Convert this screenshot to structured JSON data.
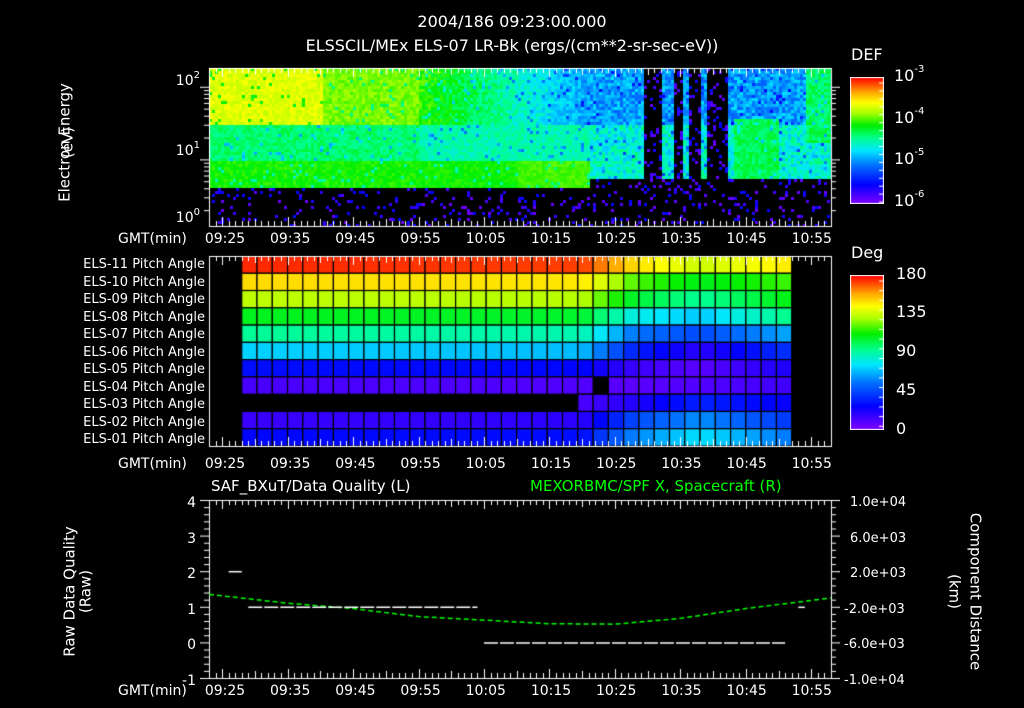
{
  "header": {
    "timestamp": "2004/186 09:23:00.000",
    "subtitle": "ELSSCIL/MEx ELS-07 LR-Bk  (ergs/(cm**2-sr-sec-eV))"
  },
  "x_axis": {
    "label": "GMT(min)",
    "ticks": [
      "09:25",
      "09:35",
      "09:45",
      "09:55",
      "10:05",
      "10:15",
      "10:25",
      "10:35",
      "10:45",
      "10:55"
    ]
  },
  "colors": {
    "background": "#000000",
    "axis": "#ffffff",
    "line_green": "#00ff00",
    "line_white": "#ffffff"
  },
  "chart_data": [
    {
      "type": "heatmap",
      "title": "ELSSCIL/MEx ELS-07 LR-Bk  (ergs/(cm**2-sr-sec-eV))",
      "xlabel": "GMT(min)",
      "ylabel": "Electron Energy (eV)",
      "yscale": "log",
      "ylim": [
        1,
        150
      ],
      "y_ticks": [
        "10^0",
        "10^1",
        "10^2"
      ],
      "x_range": [
        "09:23",
        "10:58"
      ],
      "colorbar": {
        "label": "DEF",
        "scale": "log",
        "range": [
          1e-06,
          0.001
        ],
        "ticks": [
          "10^-6",
          "10^-5",
          "10^-4",
          "10^-3"
        ]
      },
      "features": {
        "low_energy_cutoff_eV_before_1022": 3.5,
        "low_energy_cutoff_eV_after_1022": 4.5,
        "intense_band_eV": "20-150 (09:23-09:40, yellow-green)",
        "dropouts": [
          "10:30-10:32",
          "10:36-10:38",
          "10:39-10:42"
        ]
      }
    },
    {
      "type": "heatmap",
      "title": "Pitch Angle",
      "xlabel": "GMT(min)",
      "ylabel": "",
      "rows": [
        "ELS-11 Pitch Angle",
        "ELS-10 Pitch Angle",
        "ELS-09 Pitch Angle",
        "ELS-08 Pitch Angle",
        "ELS-07 Pitch Angle",
        "ELS-06 Pitch Angle",
        "ELS-05 Pitch Angle",
        "ELS-04 Pitch Angle",
        "ELS-03 Pitch Angle",
        "ELS-02 Pitch Angle",
        "ELS-01 Pitch Angle"
      ],
      "colorbar": {
        "label": "Deg",
        "scale": "linear",
        "range": [
          0,
          180
        ],
        "ticks": [
          "0",
          "45",
          "90",
          "135",
          "180"
        ]
      },
      "data_start": "09:28",
      "data_end": "10:52",
      "time_columns": [
        "09:28",
        "10:20",
        "10:28",
        "10:38",
        "10:52"
      ],
      "values_deg": [
        [
          175,
          172,
          150,
          135,
          148
        ],
        [
          150,
          148,
          120,
          108,
          118
        ],
        [
          133,
          132,
          105,
          92,
          110
        ],
        [
          108,
          106,
          80,
          70,
          95
        ],
        [
          92,
          88,
          55,
          45,
          65
        ],
        [
          72,
          68,
          35,
          18,
          40
        ],
        [
          30,
          28,
          15,
          8,
          22
        ],
        [
          12,
          10,
          8,
          10,
          14
        ],
        [
          null,
          12,
          20,
          35,
          25
        ],
        [
          15,
          18,
          45,
          60,
          40
        ],
        [
          28,
          30,
          58,
          75,
          55
        ]
      ],
      "gaps": [
        {
          "row": "ELS-04 Pitch Angle",
          "time": "10:22"
        },
        {
          "row": "ELS-03 Pitch Angle",
          "start": "09:23",
          "end": "10:20"
        }
      ]
    },
    {
      "type": "line",
      "title_left": "SAF_BXuT/Data Quality (L)",
      "title_right": "MEXORBMC/SPF X, Spacecraft (R)",
      "xlabel": "GMT(min)",
      "ylabel_left": "Raw Data Quality (Raw)",
      "ylabel_right": "Component Distance (km)",
      "ylim_left": [
        -1,
        4
      ],
      "yticks_left": [
        "-1",
        "0",
        "1",
        "2",
        "3",
        "4"
      ],
      "ylim_right": [
        -10000,
        10000
      ],
      "yticks_right": [
        "-1.0e+04",
        "-6.0e+03",
        "-2.0e+03",
        "2.0e+03",
        "6.0e+03",
        "1.0e+04"
      ],
      "series": [
        {
          "name": "SAF_BXuT/Data Quality",
          "axis": "left",
          "color": "#ffffff",
          "points": [
            [
              "09:26",
              2
            ],
            [
              "09:28",
              2
            ],
            [
              "09:29",
              1
            ],
            [
              "10:04",
              1
            ],
            [
              "10:05",
              0
            ],
            [
              "10:51",
              0
            ],
            [
              "10:53",
              1
            ]
          ]
        },
        {
          "name": "MEXORBMC/SPF X, Spacecraft",
          "axis": "right",
          "color": "#00ff00",
          "points": [
            [
              "09:23",
              -600
            ],
            [
              "09:35",
              -1600
            ],
            [
              "09:45",
              -2200
            ],
            [
              "09:55",
              -3100
            ],
            [
              "10:05",
              -3500
            ],
            [
              "10:15",
              -3900
            ],
            [
              "10:25",
              -3950
            ],
            [
              "10:35",
              -3300
            ],
            [
              "10:45",
              -2200
            ],
            [
              "10:58",
              -1000
            ]
          ]
        }
      ]
    }
  ],
  "panels": {
    "energy": {
      "ylabel": "Electron Energy",
      "yunit": "(eV)",
      "yticks": [
        {
          "base": "10",
          "exp": "2"
        },
        {
          "base": "10",
          "exp": "1"
        },
        {
          "base": "10",
          "exp": "0"
        }
      ],
      "cbar_label": "DEF",
      "cbar_ticks": [
        {
          "base": "10",
          "exp": "-3"
        },
        {
          "base": "10",
          "exp": "-4"
        },
        {
          "base": "10",
          "exp": "-5"
        },
        {
          "base": "10",
          "exp": "-6"
        }
      ]
    },
    "pitch": {
      "rows": [
        "ELS-11 Pitch Angle",
        "ELS-10 Pitch Angle",
        "ELS-09 Pitch Angle",
        "ELS-08 Pitch Angle",
        "ELS-07 Pitch Angle",
        "ELS-06 Pitch Angle",
        "ELS-05 Pitch Angle",
        "ELS-04 Pitch Angle",
        "ELS-03 Pitch Angle",
        "ELS-02 Pitch Angle",
        "ELS-01 Pitch Angle"
      ],
      "cbar_label": "Deg",
      "cbar_ticks": [
        "180",
        "135",
        "90",
        "45",
        "0"
      ]
    },
    "quality": {
      "title_left": "SAF_BXuT/Data Quality (L)",
      "title_right": "MEXORBMC/SPF X, Spacecraft (R)",
      "ylabel_left": "Raw Data Quality",
      "yunit_left": "(Raw)",
      "ylabel_right": "Component Distance",
      "yunit_right": "(km)",
      "yticks_left": [
        "4",
        "3",
        "2",
        "1",
        "0",
        "-1"
      ],
      "yticks_right": [
        "1.0e+04",
        "6.0e+03",
        "2.0e+03",
        "-2.0e+03",
        "-6.0e+03",
        "-1.0e+04"
      ]
    }
  }
}
